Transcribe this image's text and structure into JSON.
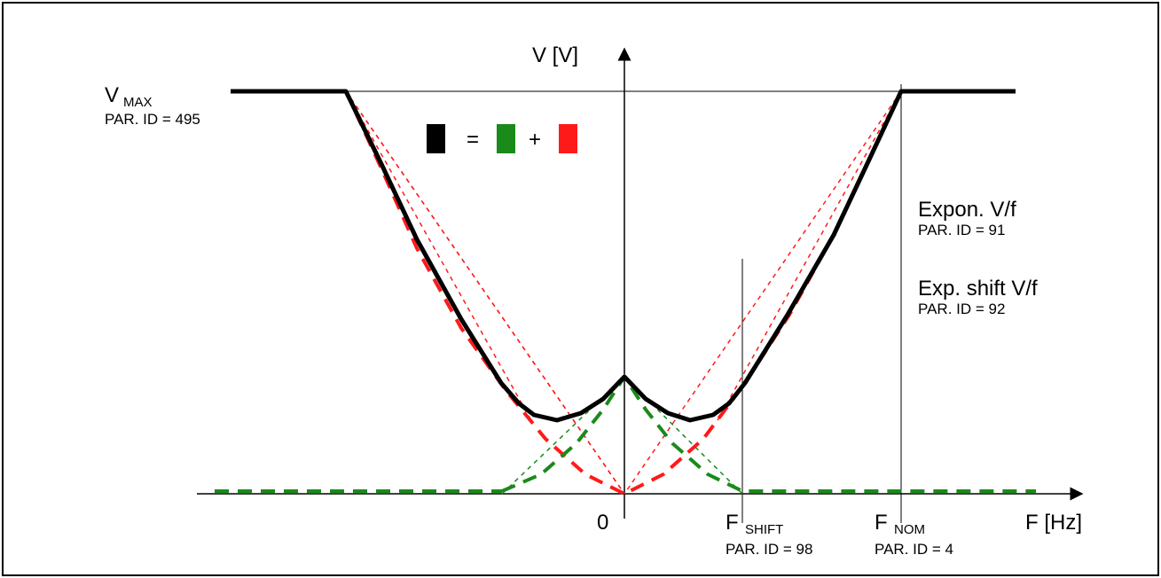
{
  "labels": {
    "v_axis": "V [V]",
    "f_axis": "F [Hz]",
    "origin": "0",
    "vmax_main": "V",
    "vmax_sub": "MAX",
    "vmax_par": "PAR. ID = 495",
    "expon_title": "Expon. V/f",
    "expon_par": "PAR. ID = 91",
    "expshift_title": "Exp. shift V/f",
    "expshift_par": "PAR. ID = 92",
    "fshift_main": "F",
    "fshift_sub": "SHIFT",
    "fshift_par": "PAR. ID = 98",
    "fnom_main": "F",
    "fnom_sub": "NOM",
    "fnom_par": "PAR. ID = 4"
  },
  "legend": {
    "equals": "=",
    "plus": "+",
    "colors": {
      "black": "#000000",
      "green": "#1a8a1a",
      "red": "#ff1a1a"
    }
  },
  "colors": {
    "result_curve": "#000000",
    "green_curve": "#1a8a1a",
    "red_curve": "#ff1a1a",
    "axis": "#000000"
  }
}
